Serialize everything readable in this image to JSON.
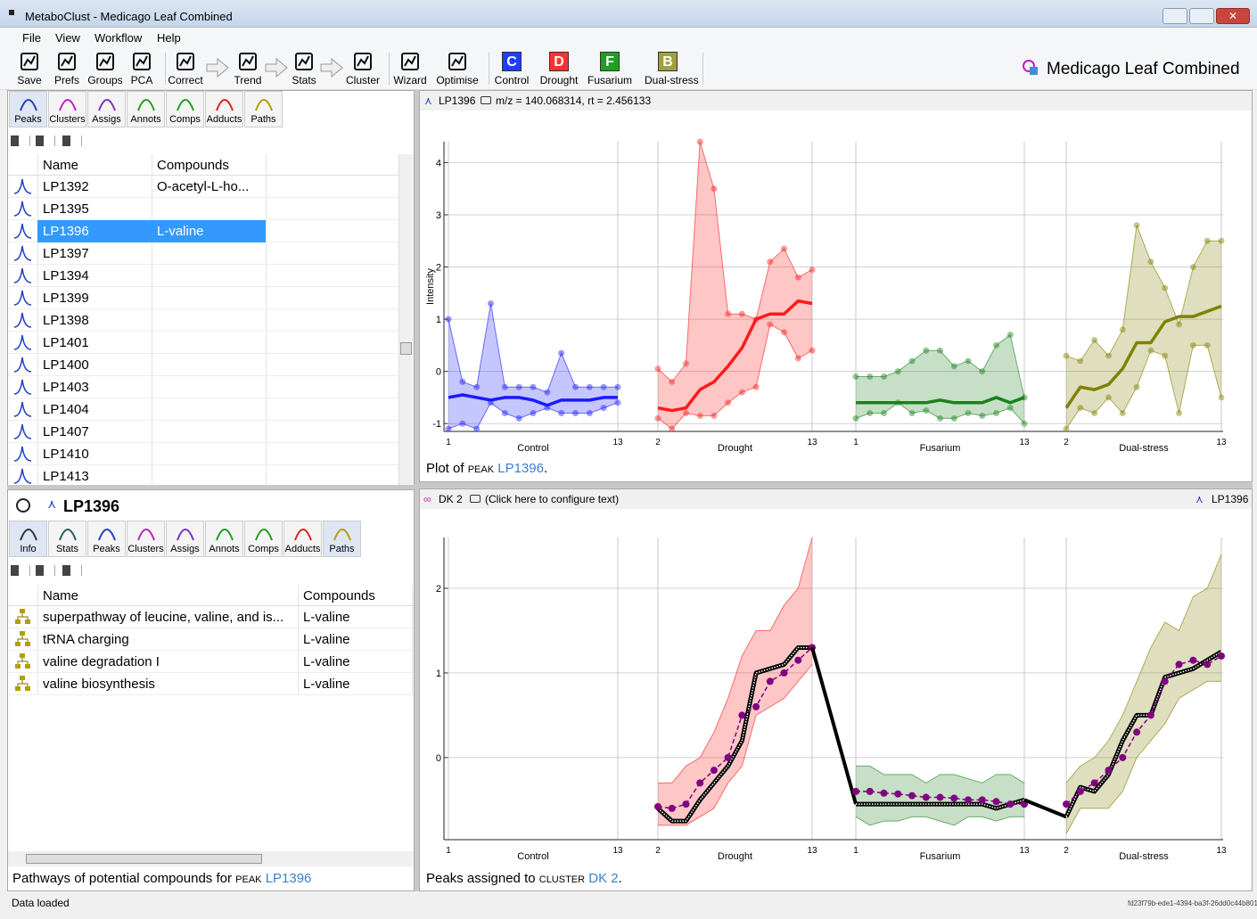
{
  "window": {
    "title": "MetaboClust - Medicago Leaf Combined"
  },
  "menu": [
    "File",
    "View",
    "Workflow",
    "Help"
  ],
  "toolbar": [
    {
      "label": "Save"
    },
    {
      "label": "Prefs"
    },
    {
      "label": "Groups"
    },
    {
      "label": "PCA"
    },
    {
      "label": "Correct"
    },
    {
      "label": "Trend"
    },
    {
      "label": "Stats"
    },
    {
      "label": "Cluster"
    },
    {
      "label": "Wizard"
    },
    {
      "label": "Optimise"
    },
    {
      "label": "Control",
      "icon": "C",
      "color": "#1f3cff"
    },
    {
      "label": "Drought",
      "icon": "D",
      "color": "#ff3030"
    },
    {
      "label": "Fusarium",
      "icon": "F",
      "color": "#20a020"
    },
    {
      "label": "Dual-stress",
      "icon": "B",
      "color": "#a0a040"
    }
  ],
  "session_title": "Medicago Leaf Combined",
  "peak_panel": {
    "tabs": [
      "Peaks",
      "Clusters",
      "Assigs",
      "Annots",
      "Comps",
      "Adducts",
      "Paths"
    ],
    "columns": [
      "Name",
      "Compounds"
    ],
    "rows": [
      {
        "name": "LP1392",
        "compound": "O-acetyl-L-ho..."
      },
      {
        "name": "LP1395"
      },
      {
        "name": "LP1396",
        "compound": "L-valine"
      },
      {
        "name": "LP1397"
      },
      {
        "name": "LP1394"
      },
      {
        "name": "LP1399"
      },
      {
        "name": "LP1398"
      },
      {
        "name": "LP1401"
      },
      {
        "name": "LP1400"
      },
      {
        "name": "LP1403"
      },
      {
        "name": "LP1404"
      },
      {
        "name": "LP1407"
      },
      {
        "name": "LP1410"
      },
      {
        "name": "LP1413"
      }
    ],
    "selected": 2
  },
  "detail_panel": {
    "title": "LP1396",
    "tabs": [
      "Info",
      "Stats",
      "Peaks",
      "Clusters",
      "Assigs",
      "Annots",
      "Comps",
      "Adducts",
      "Paths"
    ],
    "columns": [
      "Name",
      "Compounds"
    ],
    "rows": [
      {
        "name": "superpathway of leucine, valine, and is...",
        "compound": "L-valine"
      },
      {
        "name": "tRNA charging",
        "compound": "L-valine"
      },
      {
        "name": "valine degradation I",
        "compound": "L-valine"
      },
      {
        "name": "valine biosynthesis",
        "compound": "L-valine"
      }
    ],
    "caption": {
      "text": "Pathways of potential compounds for",
      "kind": "peak",
      "link": "LP1396"
    }
  },
  "plot_top": {
    "header": {
      "peak": "LP1396",
      "info": "m/z = 140.068314, rt = 2.456133"
    },
    "chart_data": {
      "type": "line",
      "ylabel": "Intensity",
      "ylim": [
        -1.15,
        4.4
      ],
      "yticks": [
        -1,
        0,
        1,
        2,
        3,
        4
      ],
      "grid": true,
      "dots": true,
      "groups": [
        {
          "name": "Control",
          "color": "#1a1aff",
          "xticks": [
            1,
            13
          ],
          "x": [
            1,
            2,
            3,
            4,
            5,
            6,
            7,
            8,
            9,
            10,
            11,
            12,
            13
          ],
          "mean": [
            -0.5,
            -0.45,
            -0.5,
            -0.55,
            -0.5,
            -0.5,
            -0.55,
            -0.65,
            -0.55,
            -0.55,
            -0.55,
            -0.5,
            -0.5
          ],
          "upper": [
            1.0,
            -0.2,
            -0.3,
            1.3,
            -0.3,
            -0.3,
            -0.3,
            -0.4,
            0.35,
            -0.3,
            -0.3,
            -0.3,
            -0.3
          ],
          "lower": [
            -1.1,
            -1.0,
            -1.1,
            -0.6,
            -0.8,
            -0.9,
            -0.8,
            -0.7,
            -0.8,
            -0.8,
            -0.8,
            -0.7,
            -0.6
          ]
        },
        {
          "name": "Drought",
          "color": "#ff1a1a",
          "xticks": [
            2,
            13
          ],
          "x": [
            2,
            3,
            4,
            5,
            6,
            7,
            8,
            9,
            10,
            11,
            12,
            13
          ],
          "mean": [
            -0.7,
            -0.75,
            -0.7,
            -0.35,
            -0.2,
            0.1,
            0.45,
            1.0,
            1.1,
            1.1,
            1.35,
            1.3
          ],
          "upper": [
            0.05,
            -0.2,
            0.15,
            4.4,
            3.5,
            1.1,
            1.1,
            1.0,
            2.1,
            2.35,
            1.8,
            1.95
          ],
          "lower": [
            -0.9,
            -1.1,
            -0.8,
            -0.85,
            -0.85,
            -0.6,
            -0.4,
            -0.3,
            0.9,
            0.75,
            0.25,
            0.4
          ]
        },
        {
          "name": "Fusarium",
          "color": "#1a801a",
          "xticks": [
            1,
            13
          ],
          "x": [
            1,
            2,
            3,
            4,
            5,
            6,
            7,
            8,
            9,
            10,
            11,
            12,
            13
          ],
          "mean": [
            -0.6,
            -0.6,
            -0.6,
            -0.6,
            -0.6,
            -0.6,
            -0.55,
            -0.6,
            -0.6,
            -0.6,
            -0.5,
            -0.6,
            -0.5
          ],
          "upper": [
            -0.1,
            -0.1,
            -0.1,
            0.0,
            0.2,
            0.4,
            0.4,
            0.1,
            0.2,
            0.0,
            0.5,
            0.7,
            -0.5
          ],
          "lower": [
            -0.9,
            -0.8,
            -0.8,
            -0.6,
            -0.8,
            -0.75,
            -0.9,
            -0.9,
            -0.8,
            -0.85,
            -0.8,
            -0.7,
            -1.0
          ]
        },
        {
          "name": "Dual-stress",
          "color": "#808000",
          "xticks": [
            2,
            13
          ],
          "x": [
            2,
            3,
            4,
            5,
            6,
            7,
            8,
            9,
            10,
            11,
            12,
            13
          ],
          "mean": [
            -0.7,
            -0.3,
            -0.35,
            -0.25,
            0.05,
            0.55,
            0.55,
            0.95,
            1.05,
            1.05,
            1.15,
            1.25
          ],
          "upper": [
            0.3,
            0.2,
            0.6,
            0.3,
            0.8,
            2.8,
            2.1,
            1.6,
            0.9,
            2.0,
            2.5,
            2.5
          ],
          "lower": [
            -1.1,
            -0.7,
            -0.8,
            -0.5,
            -0.8,
            -0.3,
            0.4,
            0.3,
            -0.8,
            0.5,
            0.5,
            -0.5
          ]
        }
      ]
    },
    "caption": {
      "text": "Plot of",
      "kind": "peak",
      "link": "LP1396",
      "end": "."
    }
  },
  "plot_bottom": {
    "header": {
      "cluster": "DK 2",
      "info": "(Click here to configure text)",
      "peak": "LP1396"
    },
    "chart_data": {
      "type": "line",
      "ylim": [
        -0.97,
        2.6
      ],
      "yticks": [
        0,
        1,
        2
      ],
      "grid": true,
      "mean_color": "#000000",
      "centroid_color": "#800080",
      "groups": [
        {
          "name": "Control",
          "color": "#1a1aff",
          "xticks": [
            1,
            13
          ]
        },
        {
          "name": "Drought",
          "color": "#ff1a1a",
          "xticks": [
            2,
            13
          ],
          "x": [
            2,
            3,
            4,
            5,
            6,
            7,
            8,
            9,
            10,
            11,
            12,
            13
          ],
          "mean": [
            -0.6,
            -0.75,
            -0.75,
            -0.5,
            -0.3,
            -0.1,
            0.2,
            1.0,
            1.05,
            1.1,
            1.3,
            1.3
          ],
          "centroid": [
            -0.58,
            -0.6,
            -0.55,
            -0.3,
            -0.15,
            0.0,
            0.5,
            0.6,
            0.9,
            1.0,
            1.15,
            1.3
          ],
          "upper": [
            -0.3,
            -0.3,
            -0.1,
            0.0,
            0.3,
            0.7,
            1.2,
            1.5,
            1.5,
            1.8,
            2.0,
            2.6
          ],
          "lower": [
            -0.8,
            -0.8,
            -0.8,
            -0.7,
            -0.6,
            -0.3,
            -0.1,
            0.5,
            0.6,
            0.7,
            0.9,
            1.1
          ]
        },
        {
          "name": "Fusarium",
          "color": "#1a801a",
          "xticks": [
            1,
            13
          ],
          "x": [
            1,
            2,
            3,
            4,
            5,
            6,
            7,
            8,
            9,
            10,
            11,
            12,
            13
          ],
          "mean": [
            -0.55,
            -0.55,
            -0.55,
            -0.55,
            -0.55,
            -0.55,
            -0.55,
            -0.55,
            -0.55,
            -0.55,
            -0.6,
            -0.55,
            -0.5
          ],
          "centroid": [
            -0.4,
            -0.4,
            -0.42,
            -0.43,
            -0.45,
            -0.47,
            -0.47,
            -0.48,
            -0.5,
            -0.5,
            -0.52,
            -0.55,
            -0.55
          ],
          "upper": [
            -0.1,
            -0.1,
            -0.2,
            -0.2,
            -0.2,
            -0.3,
            -0.2,
            -0.2,
            -0.25,
            -0.3,
            -0.2,
            -0.2,
            -0.3
          ],
          "lower": [
            -0.7,
            -0.8,
            -0.75,
            -0.75,
            -0.7,
            -0.7,
            -0.75,
            -0.8,
            -0.7,
            -0.7,
            -0.75,
            -0.7,
            -0.7
          ]
        },
        {
          "name": "Dual-stress",
          "color": "#808000",
          "xticks": [
            2,
            13
          ],
          "x": [
            2,
            3,
            4,
            5,
            6,
            7,
            8,
            9,
            10,
            11,
            12,
            13
          ],
          "mean": [
            -0.7,
            -0.35,
            -0.4,
            -0.2,
            0.2,
            0.5,
            0.5,
            0.95,
            1.0,
            1.05,
            1.15,
            1.25
          ],
          "centroid": [
            -0.55,
            -0.4,
            -0.3,
            -0.15,
            0.0,
            0.3,
            0.5,
            0.9,
            1.1,
            1.15,
            1.1,
            1.2
          ],
          "upper": [
            -0.3,
            -0.1,
            0.0,
            0.2,
            0.5,
            0.9,
            1.3,
            1.6,
            1.5,
            1.9,
            2.0,
            2.4
          ],
          "lower": [
            -0.9,
            -0.6,
            -0.6,
            -0.6,
            -0.4,
            0.0,
            0.2,
            0.4,
            0.7,
            0.8,
            0.9,
            0.9
          ]
        }
      ]
    },
    "caption": {
      "text": "Peaks assigned to",
      "kind": "cluster",
      "link": "DK 2",
      "end": "."
    }
  },
  "status": {
    "text": "Data loaded",
    "id": "fd23f79b-ede1-4394-ba3f-26dd0c44b801"
  }
}
